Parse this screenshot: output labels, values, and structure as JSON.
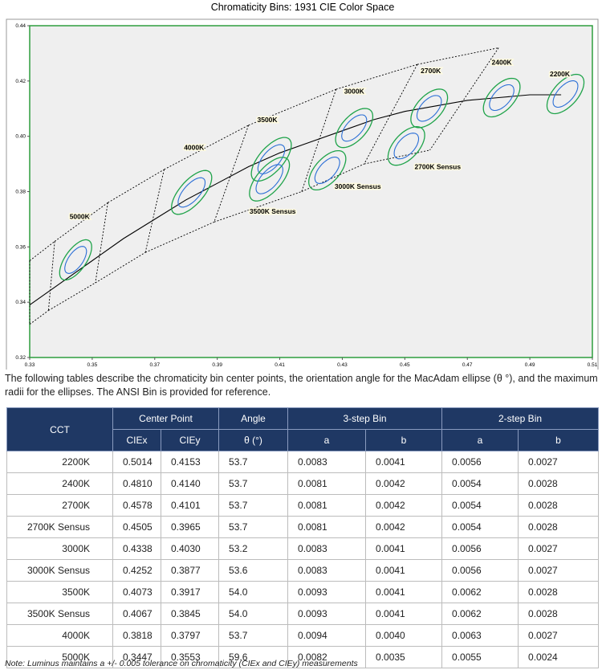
{
  "chart_data": {
    "type": "scatter",
    "title": "Chromaticity Bins: 1931 CIE Color Space",
    "xlim": [
      0.33,
      0.51
    ],
    "ylim": [
      0.32,
      0.44
    ],
    "xticks": [
      0.33,
      0.35,
      0.37,
      0.39,
      0.41,
      0.43,
      0.45,
      0.47,
      0.49,
      0.51
    ],
    "yticks": [
      0.32,
      0.34,
      0.36,
      0.38,
      {
        "value": 0.4,
        "label": "0.40"
      },
      0.42,
      0.44
    ],
    "locus": {
      "x": [
        0.33,
        0.34,
        0.35,
        0.36,
        0.37,
        0.38,
        0.39,
        0.4,
        0.41,
        0.42,
        0.43,
        0.44,
        0.45,
        0.46,
        0.47,
        0.48,
        0.49,
        0.5
      ],
      "y": [
        0.339,
        0.347,
        0.355,
        0.363,
        0.37,
        0.377,
        0.383,
        0.389,
        0.394,
        0.398,
        0.402,
        0.406,
        0.409,
        0.411,
        0.413,
        0.414,
        0.415,
        0.415
      ]
    },
    "bin_boundaries": {
      "top_x": [
        0.33,
        0.338,
        0.355,
        0.373,
        0.4,
        0.428,
        0.454,
        0.48
      ],
      "top_y": [
        0.355,
        0.362,
        0.376,
        0.388,
        0.404,
        0.417,
        0.426,
        0.432
      ],
      "bottom_x": [
        0.33,
        0.336,
        0.351,
        0.367,
        0.389,
        0.417,
        0.437,
        0.458
      ],
      "bottom_y": [
        0.332,
        0.337,
        0.347,
        0.358,
        0.369,
        0.38,
        0.39,
        0.395
      ]
    },
    "colors": {
      "three_step": "#1fa34a",
      "two_step": "#2b6fd6",
      "locus": "#000000",
      "bins": "#000000"
    }
  },
  "description": "The following tables describe the chromaticity bin center points, the orientation angle for the MacAdam ellipse (θ °), and the maximum radii for the ellipses. The ANSI Bin is provided for reference.",
  "table": {
    "header": [
      "CCT",
      "Center Point",
      "Angle",
      "3-step Bin",
      "2-step Bin"
    ],
    "subheader": [
      "CIEx",
      "CIEy",
      "θ (°)",
      "a",
      "b",
      "a",
      "b"
    ],
    "rows": [
      [
        "2200K",
        "0.5014",
        "0.4153",
        "53.7",
        "0.0083",
        "0.0041",
        "0.0056",
        "0.0027"
      ],
      [
        "2400K",
        "0.4810",
        "0.4140",
        "53.7",
        "0.0081",
        "0.0042",
        "0.0054",
        "0.0028"
      ],
      [
        "2700K",
        "0.4578",
        "0.4101",
        "53.7",
        "0.0081",
        "0.0042",
        "0.0054",
        "0.0028"
      ],
      [
        "2700K Sensus",
        "0.4505",
        "0.3965",
        "53.7",
        "0.0081",
        "0.0042",
        "0.0054",
        "0.0028"
      ],
      [
        "3000K",
        "0.4338",
        "0.4030",
        "53.2",
        "0.0083",
        "0.0041",
        "0.0056",
        "0.0027"
      ],
      [
        "3000K Sensus",
        "0.4252",
        "0.3877",
        "53.6",
        "0.0083",
        "0.0041",
        "0.0056",
        "0.0027"
      ],
      [
        "3500K",
        "0.4073",
        "0.3917",
        "54.0",
        "0.0093",
        "0.0041",
        "0.0062",
        "0.0028"
      ],
      [
        "3500K Sensus",
        "0.4067",
        "0.3845",
        "54.0",
        "0.0093",
        "0.0041",
        "0.0062",
        "0.0028"
      ],
      [
        "4000K",
        "0.3818",
        "0.3797",
        "53.7",
        "0.0094",
        "0.0040",
        "0.0063",
        "0.0027"
      ],
      [
        "5000K",
        "0.3447",
        "0.3553",
        "59.6",
        "0.0082",
        "0.0035",
        "0.0055",
        "0.0024"
      ]
    ]
  },
  "note": "Note: Luminus maintains a +/- 0.005 tolerance on chromaticity (CIEx and CIEy) measurements"
}
